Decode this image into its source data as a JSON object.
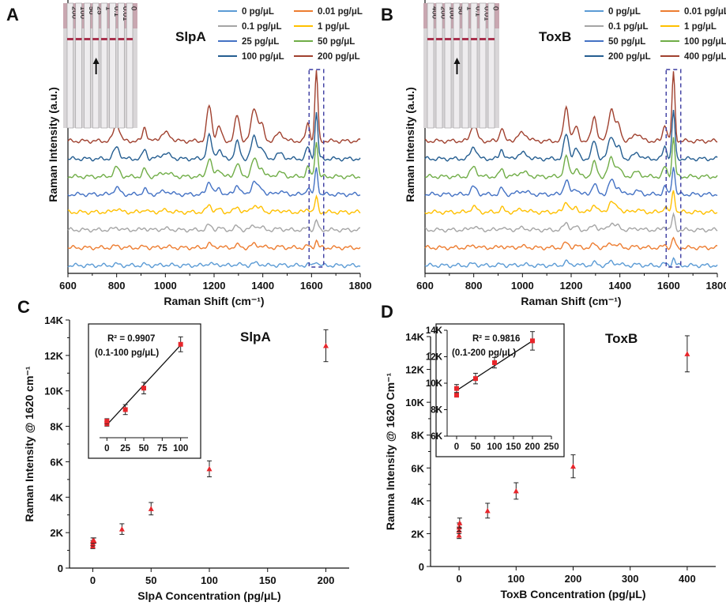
{
  "panels": {
    "A": "A",
    "B": "B",
    "C": "C",
    "D": "D"
  },
  "colors": {
    "axis": "#111111",
    "marker": "#e8262b",
    "dashed_box": "#3a3aa0",
    "fit_line": "#111111"
  },
  "chart_data": [
    {
      "panel": "A",
      "type": "line",
      "title": "SlpA",
      "xlabel": "Raman Shift (cm⁻¹)",
      "ylabel": "Raman Intensity (a.u.)",
      "xlim": [
        600,
        1800
      ],
      "xticks": [
        600,
        800,
        1000,
        1200,
        1400,
        1600,
        1800
      ],
      "highlight_region": [
        1590,
        1650
      ],
      "strip_labels": [
        "200",
        "100",
        "50",
        "25",
        "1",
        "0.1",
        "0.01",
        "0"
      ],
      "series": [
        {
          "name": "0 pg/μL",
          "color": "#5b9bd5",
          "peak": 0.1
        },
        {
          "name": "0.01 pg/μL",
          "color": "#ed7d31",
          "peak": 0.15
        },
        {
          "name": "0.1 pg/μL",
          "color": "#a5a5a5",
          "peak": 0.2
        },
        {
          "name": "1 pg/μL",
          "color": "#ffc000",
          "peak": 0.3
        },
        {
          "name": "25 pg/μL",
          "color": "#4472c4",
          "peak": 0.55
        },
        {
          "name": "50 pg/μL",
          "color": "#70ad47",
          "peak": 0.75
        },
        {
          "name": "100 pg/μL",
          "color": "#255e91",
          "peak": 0.95
        },
        {
          "name": "200 pg/μL",
          "color": "#a0412f",
          "peak": 1.45
        }
      ]
    },
    {
      "panel": "B",
      "type": "line",
      "title": "ToxB",
      "xlabel": "Raman Shift (cm⁻¹)",
      "ylabel": "Raman Intensity (a.u.)",
      "xlim": [
        600,
        1800
      ],
      "xticks": [
        600,
        800,
        1000,
        1200,
        1400,
        1600,
        1800
      ],
      "highlight_region": [
        1590,
        1650
      ],
      "strip_labels": [
        "400",
        "200",
        "100",
        "50",
        "1",
        "0.1",
        "0.01",
        "0"
      ],
      "series": [
        {
          "name": "0 pg/μL",
          "color": "#5b9bd5",
          "peak": 0.15
        },
        {
          "name": "0.01 pg/μL",
          "color": "#ed7d31",
          "peak": 0.2
        },
        {
          "name": "0.1 pg/μL",
          "color": "#a5a5a5",
          "peak": 0.3
        },
        {
          "name": "1 pg/μL",
          "color": "#ffc000",
          "peak": 0.45
        },
        {
          "name": "50 pg/μL",
          "color": "#4472c4",
          "peak": 0.6
        },
        {
          "name": "100 pg/μL",
          "color": "#70ad47",
          "peak": 0.8
        },
        {
          "name": "200 pg/μL",
          "color": "#255e91",
          "peak": 1.0
        },
        {
          "name": "400 pg/μL",
          "color": "#a0412f",
          "peak": 1.4
        }
      ]
    },
    {
      "panel": "C",
      "type": "scatter",
      "title": "SlpA",
      "xlabel": "SlpA Concentration (pg/μL)",
      "ylabel": "Raman Intensity @ 1620 cm⁻¹",
      "xlim": [
        -20,
        220
      ],
      "ylim": [
        0,
        14000
      ],
      "xticks": [
        0,
        50,
        100,
        150,
        200
      ],
      "yticks": [
        0,
        2000,
        4000,
        6000,
        8000,
        10000,
        12000,
        14000
      ],
      "ytick_labels": [
        "0",
        "2K",
        "4K",
        "6K",
        "8K",
        "10K",
        "12K",
        "14K"
      ],
      "points": [
        {
          "x": 0,
          "y": 1250,
          "err": 150
        },
        {
          "x": 0.01,
          "y": 1400,
          "err": 150
        },
        {
          "x": 0.1,
          "y": 1550,
          "err": 150
        },
        {
          "x": 1,
          "y": 1550,
          "err": 150
        },
        {
          "x": 25,
          "y": 2200,
          "err": 300
        },
        {
          "x": 50,
          "y": 3350,
          "err": 350
        },
        {
          "x": 100,
          "y": 5600,
          "err": 450
        },
        {
          "x": 200,
          "y": 12550,
          "err": 900
        }
      ],
      "inset": {
        "r2": "R² = 0.9907",
        "range": "(0.1-100 pg/μL)",
        "xlim": [
          -10,
          110
        ],
        "xticks": [
          0,
          25,
          50,
          75,
          100
        ],
        "points": [
          {
            "x": 0,
            "y": 7850,
            "err": 150
          },
          {
            "x": 0,
            "y": 8000,
            "err": 150
          },
          {
            "x": 25,
            "y": 8700,
            "err": 300
          },
          {
            "x": 50,
            "y": 10000,
            "err": 350
          },
          {
            "x": 100,
            "y": 12650,
            "err": 450
          }
        ],
        "fit": [
          [
            0,
            7780
          ],
          [
            100,
            12600
          ]
        ]
      }
    },
    {
      "panel": "D",
      "type": "scatter",
      "title": "ToxB",
      "xlabel": "ToxB Concentration (pg/μL)",
      "ylabel": "Ramna Intensity @ 1620 Cm⁻¹",
      "xlim": [
        -50,
        450
      ],
      "ylim": [
        0,
        14000
      ],
      "xticks": [
        0,
        100,
        200,
        300,
        400
      ],
      "yticks": [
        0,
        2000,
        4000,
        6000,
        8000,
        10000,
        12000,
        14000
      ],
      "ytick_labels": [
        "0",
        "2K",
        "4K",
        "6K",
        "8K",
        "10K",
        "12K",
        "14K"
      ],
      "points": [
        {
          "x": 0,
          "y": 1900,
          "err": 200
        },
        {
          "x": 0.01,
          "y": 2200,
          "err": 200
        },
        {
          "x": 0.1,
          "y": 2400,
          "err": 250
        },
        {
          "x": 1,
          "y": 2650,
          "err": 300
        },
        {
          "x": 50,
          "y": 3400,
          "err": 450
        },
        {
          "x": 100,
          "y": 4600,
          "err": 500
        },
        {
          "x": 200,
          "y": 6100,
          "err": 700
        },
        {
          "x": 400,
          "y": 12950,
          "err": 1100
        }
      ],
      "inset": {
        "r2": "R² = 0.9816",
        "range": "(0.1-200 pg/μL)",
        "xlim": [
          -25,
          250
        ],
        "xticks": [
          0,
          50,
          100,
          150,
          200,
          250
        ],
        "ylim": [
          6000,
          14000
        ],
        "yticks": [
          6000,
          8000,
          10000,
          12000,
          14000
        ],
        "ytick_labels": [
          "6K",
          "8K",
          "10K",
          "12K",
          "14K"
        ],
        "points": [
          {
            "x": 0,
            "y": 9100,
            "err": 150
          },
          {
            "x": 0,
            "y": 9600,
            "err": 300
          },
          {
            "x": 50,
            "y": 10350,
            "err": 400
          },
          {
            "x": 100,
            "y": 11550,
            "err": 400
          },
          {
            "x": 200,
            "y": 13200,
            "err": 700
          }
        ],
        "fit": [
          [
            0,
            9450
          ],
          [
            200,
            13200
          ]
        ]
      }
    }
  ]
}
